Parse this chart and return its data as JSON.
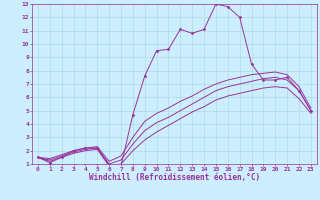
{
  "xlabel": "Windchill (Refroidissement éolien,°C)",
  "background_color": "#cceeff",
  "line_color": "#993399",
  "xlim": [
    -0.5,
    23.5
  ],
  "ylim": [
    1,
    13
  ],
  "xticks": [
    0,
    1,
    2,
    3,
    4,
    5,
    6,
    7,
    8,
    9,
    10,
    11,
    12,
    13,
    14,
    15,
    16,
    17,
    18,
    19,
    20,
    21,
    22,
    23
  ],
  "yticks": [
    1,
    2,
    3,
    4,
    5,
    6,
    7,
    8,
    9,
    10,
    11,
    12,
    13
  ],
  "lines": [
    {
      "x": [
        0,
        1,
        2,
        3,
        4,
        5,
        6,
        7,
        8,
        9,
        10,
        11,
        12,
        13,
        14,
        15,
        16,
        17,
        18,
        19,
        20,
        21,
        22,
        23
      ],
      "y": [
        1.5,
        1.1,
        1.5,
        2.0,
        2.2,
        2.2,
        0.9,
        0.85,
        4.7,
        7.6,
        9.5,
        9.6,
        11.1,
        10.8,
        11.1,
        13.0,
        12.8,
        12.0,
        8.5,
        7.3,
        7.3,
        7.5,
        6.5,
        5.0
      ],
      "marker": "D",
      "markersize": 1.5,
      "has_marker": true
    },
    {
      "x": [
        0,
        1,
        2,
        3,
        4,
        5,
        6,
        7,
        8,
        9,
        10,
        11,
        12,
        13,
        14,
        15,
        16,
        17,
        18,
        19,
        20,
        21,
        22,
        23
      ],
      "y": [
        1.5,
        1.3,
        1.6,
        1.9,
        2.1,
        2.2,
        1.0,
        1.3,
        2.5,
        3.5,
        4.1,
        4.5,
        5.0,
        5.5,
        6.0,
        6.5,
        6.8,
        7.0,
        7.2,
        7.4,
        7.5,
        7.3,
        6.5,
        5.0
      ],
      "marker": null,
      "markersize": 0,
      "has_marker": false
    },
    {
      "x": [
        0,
        1,
        2,
        3,
        4,
        5,
        6,
        7,
        8,
        9,
        10,
        11,
        12,
        13,
        14,
        15,
        16,
        17,
        18,
        19,
        20,
        21,
        22,
        23
      ],
      "y": [
        1.5,
        1.4,
        1.7,
        2.0,
        2.2,
        2.3,
        1.2,
        1.6,
        3.0,
        4.2,
        4.8,
        5.2,
        5.7,
        6.1,
        6.6,
        7.0,
        7.3,
        7.5,
        7.7,
        7.8,
        7.9,
        7.7,
        6.8,
        5.2
      ],
      "marker": null,
      "markersize": 0,
      "has_marker": false
    },
    {
      "x": [
        0,
        1,
        2,
        3,
        4,
        5,
        6,
        7,
        8,
        9,
        10,
        11,
        12,
        13,
        14,
        15,
        16,
        17,
        18,
        19,
        20,
        21,
        22,
        23
      ],
      "y": [
        1.5,
        1.2,
        1.5,
        1.8,
        2.0,
        2.1,
        0.85,
        1.0,
        2.0,
        2.8,
        3.4,
        3.9,
        4.4,
        4.9,
        5.3,
        5.8,
        6.1,
        6.3,
        6.5,
        6.7,
        6.8,
        6.7,
        5.9,
        4.8
      ],
      "marker": null,
      "markersize": 0,
      "has_marker": false
    }
  ],
  "grid_color": "#aadddd",
  "tick_fontsize": 4.5,
  "xlabel_fontsize": 5.5
}
